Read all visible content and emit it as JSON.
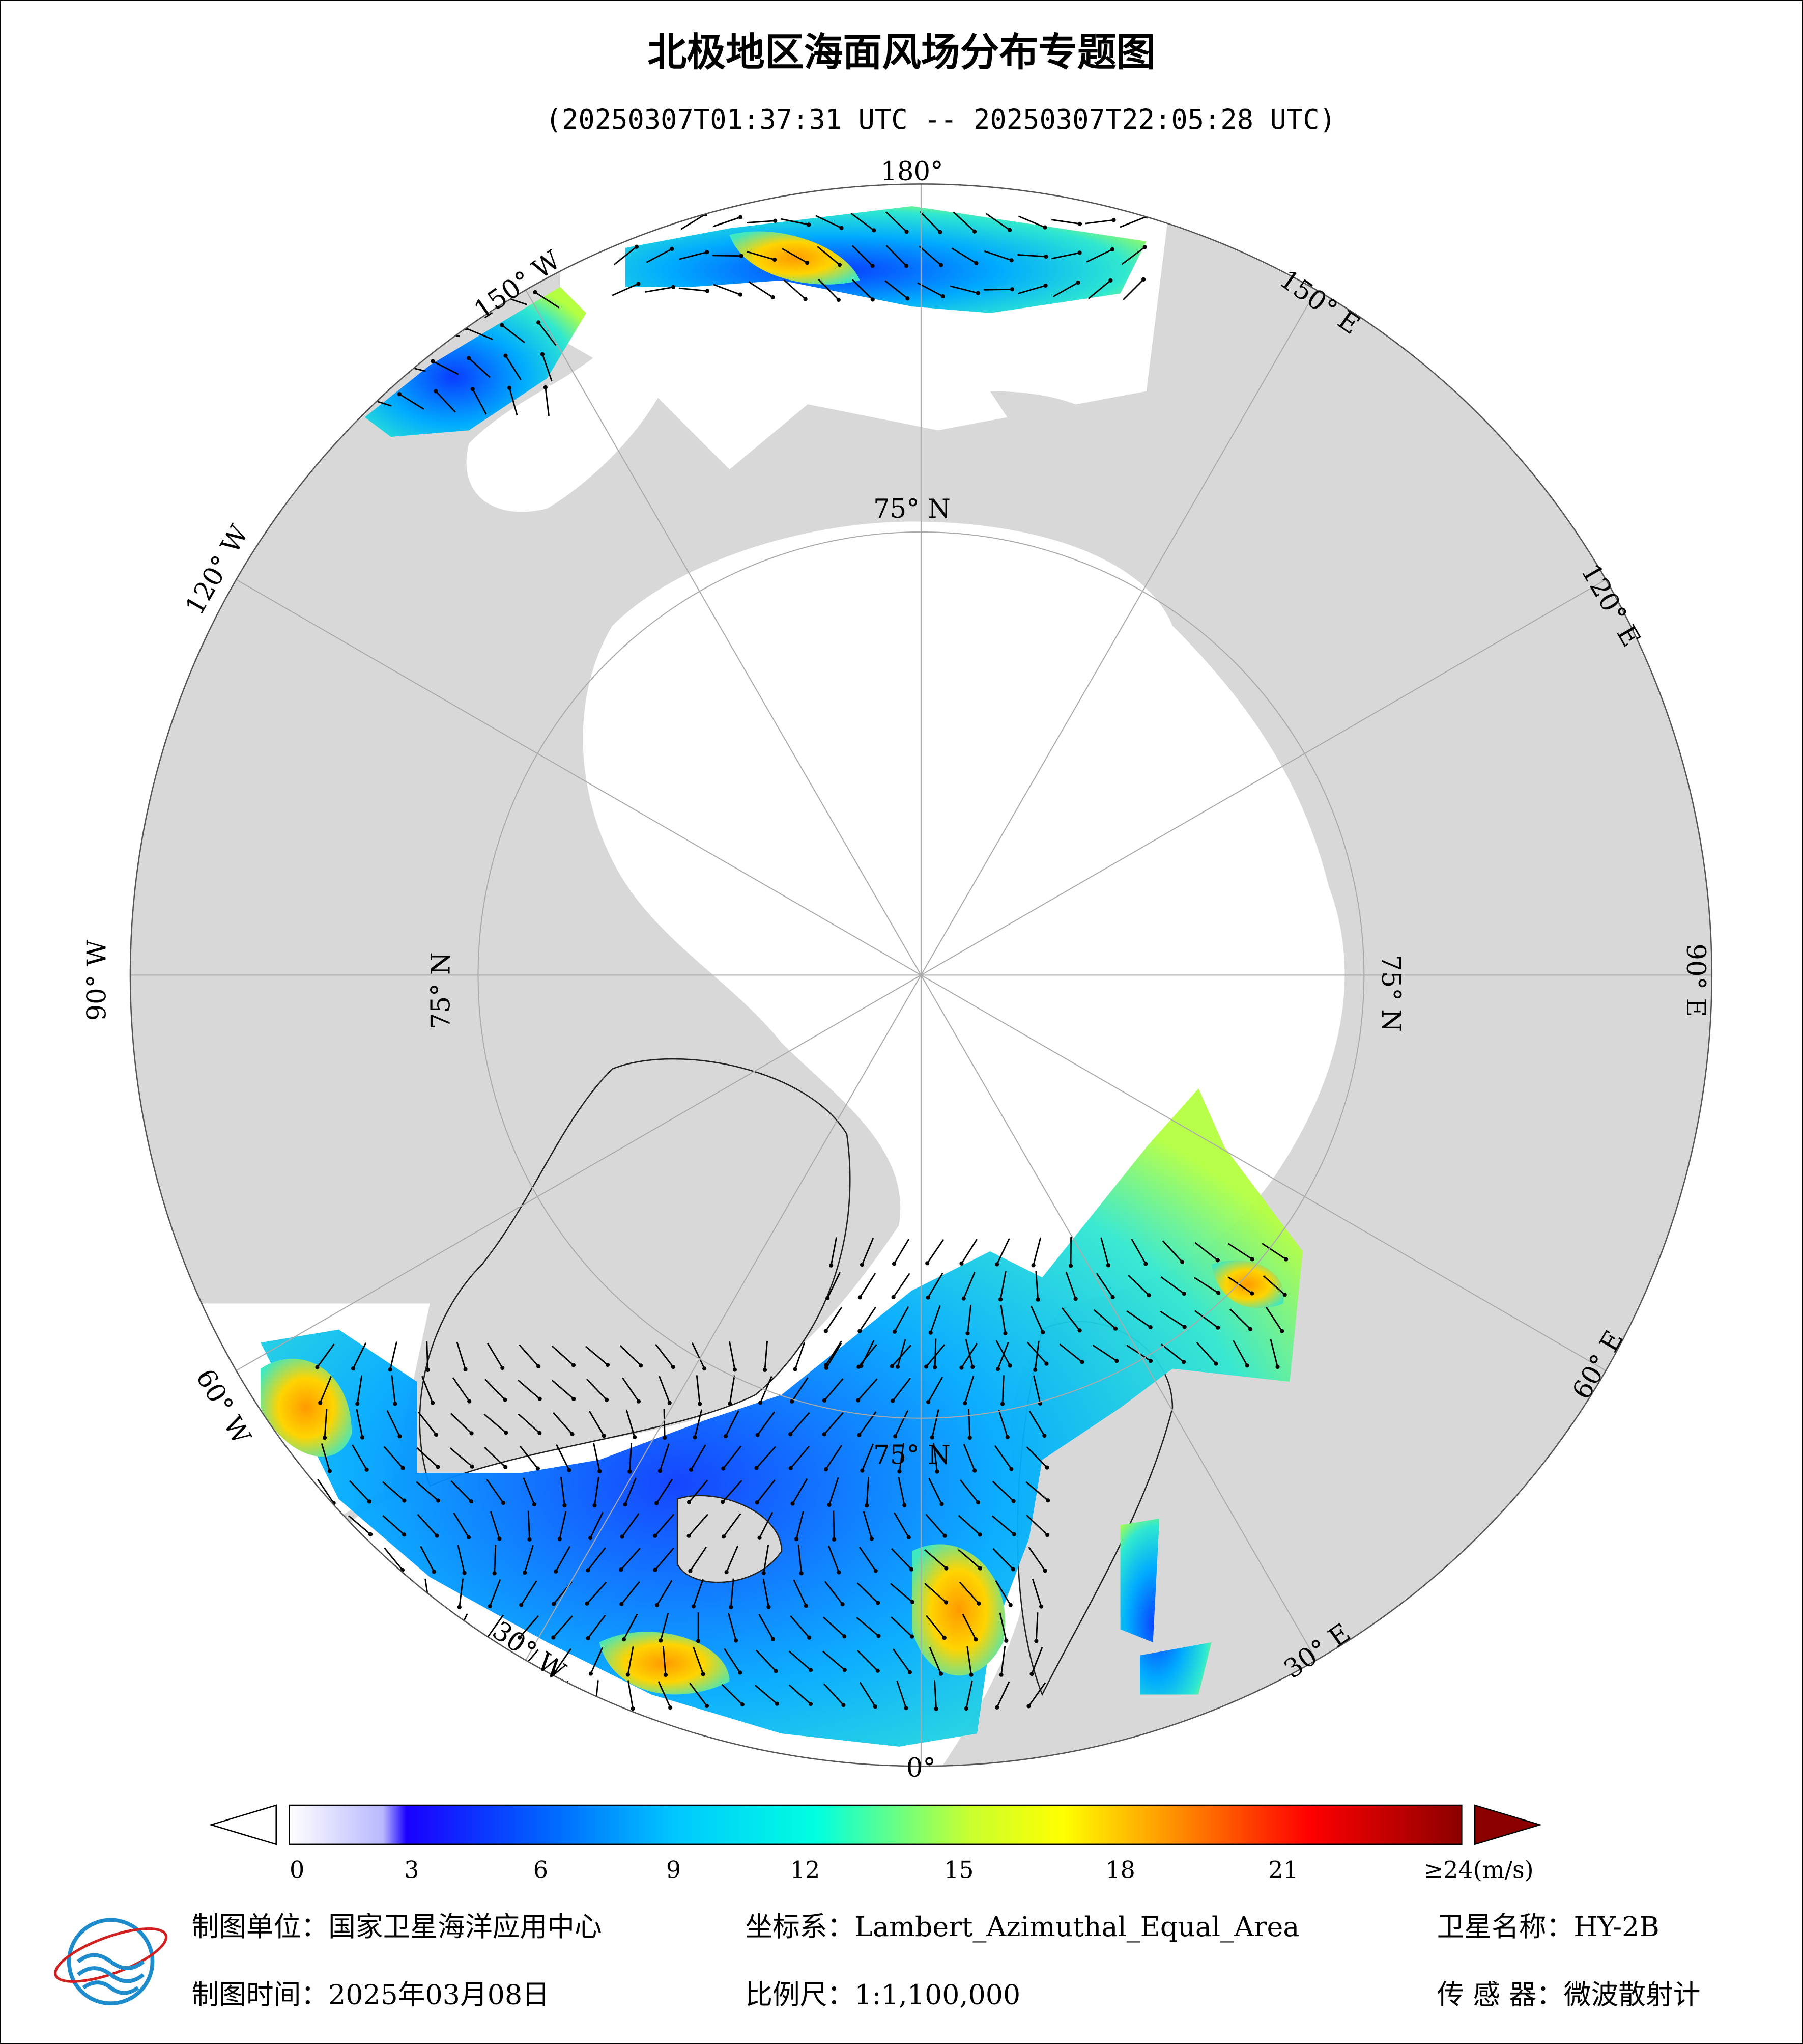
{
  "map": {
    "title": "北极地区海面风场分布专题图",
    "subtitle": "(20250307T01:37:31 UTC -- 20250307T22:05:28 UTC)",
    "longitude_labels": [
      "180°",
      "150° E",
      "120° E",
      "90° E",
      "60° E",
      "30° E",
      "0°",
      "30° W",
      "60° W",
      "90° W",
      "120° W",
      "150° W"
    ],
    "latitude_labels": [
      "75° N",
      "75° N",
      "75° N",
      "75° N"
    ],
    "colorbar": {
      "ticks": [
        0,
        3,
        6,
        9,
        12,
        15,
        18,
        21,
        {
          "value": 24,
          "label": "≥24(m/s)"
        }
      ]
    },
    "footer": {
      "unit": "制图单位：国家卫星海洋应用中心",
      "projection": "坐标系：Lambert_Azimuthal_Equal_Area",
      "satellite": "卫星名称：HY-2B",
      "date": "制图时间：2025年03月08日",
      "scale": "比例尺：1:1,100,000",
      "sensor": "传 感 器：微波散射计"
    }
  }
}
